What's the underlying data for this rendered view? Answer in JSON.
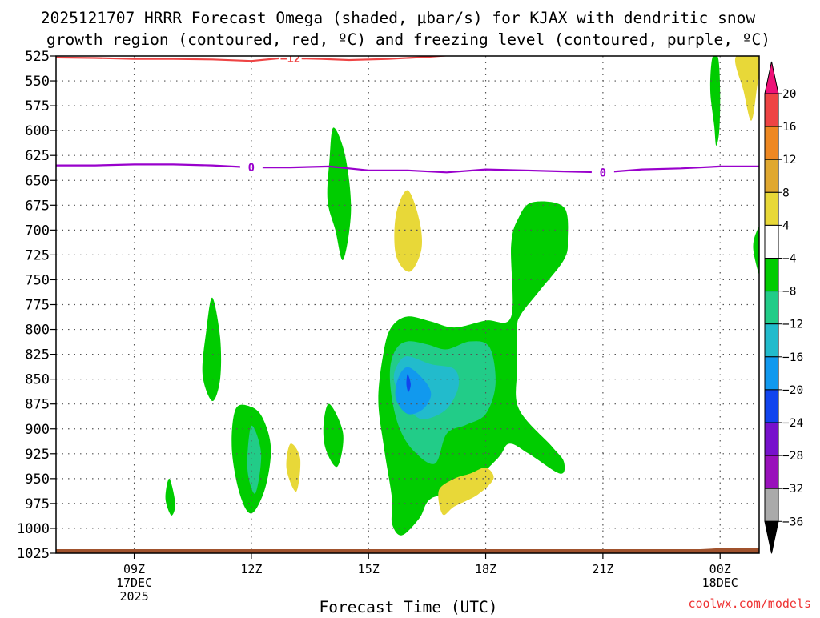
{
  "chart_data": {
    "type": "heatmap",
    "title_line1": "2025121707 HRRR Forecast Omega (shaded, µbar/s) for KJAX with dendritic snow",
    "title_line2": "growth region (contoured, red, ºC) and freezing level (contoured, purple, ºC)",
    "xlabel": "Forecast Time (UTC)",
    "ylabel": "",
    "credit": "coolwx.com/models",
    "x_range_hours": [
      7,
      25
    ],
    "y_range_mb": [
      525,
      1025
    ],
    "y_ticks": [
      525,
      550,
      575,
      600,
      625,
      650,
      675,
      700,
      725,
      750,
      775,
      800,
      825,
      850,
      875,
      900,
      925,
      950,
      975,
      1000,
      1025
    ],
    "x_ticks": [
      {
        "hour": 9,
        "label": "09Z",
        "sub1": "17DEC",
        "sub2": "2025"
      },
      {
        "hour": 12,
        "label": "12Z",
        "sub1": "",
        "sub2": ""
      },
      {
        "hour": 15,
        "label": "15Z",
        "sub1": "",
        "sub2": ""
      },
      {
        "hour": 18,
        "label": "18Z",
        "sub1": "",
        "sub2": ""
      },
      {
        "hour": 21,
        "label": "21Z",
        "sub1": "",
        "sub2": ""
      },
      {
        "hour": 24,
        "label": "00Z",
        "sub1": "18DEC",
        "sub2": ""
      }
    ],
    "colorbar": {
      "labels": [
        "20",
        "16",
        "12",
        "8",
        "4",
        "−4",
        "−8",
        "−12",
        "−16",
        "−20",
        "−24",
        "−28",
        "−32",
        "−36"
      ],
      "colors": [
        "#ee4444",
        "#ee8822",
        "#e0a830",
        "#e8d838",
        "#ffffff",
        "#00cc00",
        "#22cc88",
        "#22bbcc",
        "#1199ee",
        "#1144ee",
        "#7711cc",
        "#9911bb",
        "#aaaaaa"
      ],
      "top_arrow_color": "#ee1177",
      "bottom_arrow_color": "#000000"
    },
    "contours": [
      {
        "name": "dendritic -12C",
        "color": "#ee4444",
        "label": "−12",
        "points": [
          [
            7.0,
            526.5
          ],
          [
            8.0,
            527
          ],
          [
            9.0,
            528
          ],
          [
            10.0,
            528
          ],
          [
            11.0,
            528.5
          ],
          [
            12.0,
            530
          ],
          [
            12.8,
            527
          ],
          [
            13.8,
            528
          ],
          [
            14.5,
            529
          ],
          [
            15.5,
            528
          ],
          [
            16.5,
            526
          ],
          [
            17.5,
            523
          ],
          [
            18.0,
            521
          ]
        ]
      },
      {
        "name": "freezing level 0C",
        "color": "#9900cc",
        "label": "0",
        "points": [
          [
            7.0,
            635
          ],
          [
            8.0,
            635
          ],
          [
            9.0,
            634
          ],
          [
            10.0,
            634
          ],
          [
            11.0,
            635
          ],
          [
            12.0,
            637
          ],
          [
            13.0,
            637
          ],
          [
            14.0,
            636
          ],
          [
            15.0,
            640
          ],
          [
            16.0,
            640
          ],
          [
            17.0,
            642
          ],
          [
            18.0,
            639
          ],
          [
            19.0,
            640
          ],
          [
            20.0,
            641
          ],
          [
            21.0,
            642
          ],
          [
            22.0,
            639
          ],
          [
            23.0,
            638
          ],
          [
            24.0,
            636
          ],
          [
            25.0,
            636
          ]
        ]
      }
    ],
    "regions": [
      {
        "color": "#00cc00",
        "points": [
          [
            23.8,
            527
          ],
          [
            23.95,
            527
          ],
          [
            24.0,
            560
          ],
          [
            23.98,
            600
          ],
          [
            23.9,
            615
          ],
          [
            23.85,
            595
          ],
          [
            23.75,
            560
          ]
        ],
        "cls": "g1"
      },
      {
        "color": "#e8d838",
        "points": [
          [
            24.4,
            526
          ],
          [
            25.05,
            526
          ],
          [
            24.95,
            555
          ],
          [
            24.8,
            590
          ],
          [
            24.6,
            560
          ]
        ],
        "cls": "y1"
      },
      {
        "color": "#00cc00",
        "points": [
          [
            14.1,
            597
          ],
          [
            14.4,
            625
          ],
          [
            14.55,
            680
          ],
          [
            14.35,
            730
          ],
          [
            14.15,
            700
          ],
          [
            13.95,
            670
          ],
          [
            14.0,
            630
          ]
        ],
        "cls": "g2"
      },
      {
        "color": "#e8d838",
        "points": [
          [
            16.0,
            660
          ],
          [
            16.3,
            690
          ],
          [
            16.35,
            720
          ],
          [
            16.05,
            742
          ],
          [
            15.7,
            725
          ],
          [
            15.7,
            685
          ]
        ],
        "cls": "y2"
      },
      {
        "color": "#00cc00",
        "points": [
          [
            11.0,
            768
          ],
          [
            11.2,
            808
          ],
          [
            11.2,
            850
          ],
          [
            11.0,
            872
          ],
          [
            10.75,
            845
          ],
          [
            10.85,
            800
          ]
        ],
        "cls": "g3"
      },
      {
        "color": "#00cc00",
        "points": [
          [
            9.9,
            950
          ],
          [
            10.05,
            975
          ],
          [
            9.95,
            987
          ],
          [
            9.8,
            970
          ]
        ],
        "cls": "g4"
      },
      {
        "color": "#00cc00",
        "points": [
          [
            11.6,
            880
          ],
          [
            12.0,
            878
          ],
          [
            12.3,
            890
          ],
          [
            12.5,
            920
          ],
          [
            12.35,
            960
          ],
          [
            12.0,
            985
          ],
          [
            11.7,
            965
          ],
          [
            11.5,
            920
          ]
        ],
        "cls": "g5"
      },
      {
        "color": "#22cc88",
        "points": [
          [
            12.0,
            897
          ],
          [
            12.25,
            925
          ],
          [
            12.1,
            965
          ],
          [
            11.9,
            940
          ]
        ],
        "cls": "t1"
      },
      {
        "color": "#e8d838",
        "points": [
          [
            13.0,
            915
          ],
          [
            13.25,
            930
          ],
          [
            13.15,
            963
          ],
          [
            12.9,
            940
          ]
        ],
        "cls": "y3"
      },
      {
        "color": "#00cc00",
        "points": [
          [
            14.0,
            875
          ],
          [
            14.35,
            905
          ],
          [
            14.2,
            938
          ],
          [
            13.9,
            920
          ],
          [
            13.85,
            895
          ]
        ],
        "cls": "g6"
      },
      {
        "color": "#00cc00",
        "points": [
          [
            19.2,
            672
          ],
          [
            20.0,
            677
          ],
          [
            20.1,
            710
          ],
          [
            20.0,
            730
          ],
          [
            19.4,
            760
          ],
          [
            18.9,
            785
          ],
          [
            18.8,
            800
          ],
          [
            18.8,
            840
          ],
          [
            18.85,
            880
          ],
          [
            19.7,
            918
          ],
          [
            20.0,
            933
          ],
          [
            19.9,
            945
          ],
          [
            19.1,
            925
          ],
          [
            18.6,
            915
          ],
          [
            18.3,
            930
          ],
          [
            17.4,
            962
          ],
          [
            16.6,
            970
          ],
          [
            16.3,
            990
          ],
          [
            15.85,
            1007
          ],
          [
            15.6,
            995
          ],
          [
            15.6,
            970
          ],
          [
            15.4,
            920
          ],
          [
            15.25,
            870
          ],
          [
            15.4,
            820
          ],
          [
            15.6,
            797
          ],
          [
            16.0,
            787
          ],
          [
            16.6,
            792
          ],
          [
            17.2,
            798
          ],
          [
            18.0,
            791
          ],
          [
            18.65,
            787
          ],
          [
            18.65,
            715
          ],
          [
            18.85,
            687
          ]
        ],
        "cls": "g7"
      },
      {
        "color": "#22cc88",
        "points": [
          [
            16.0,
            812
          ],
          [
            16.5,
            815
          ],
          [
            17.0,
            820
          ],
          [
            17.6,
            812
          ],
          [
            18.1,
            818
          ],
          [
            18.25,
            855
          ],
          [
            18.0,
            885
          ],
          [
            17.5,
            896
          ],
          [
            17.0,
            905
          ],
          [
            16.7,
            935
          ],
          [
            16.15,
            922
          ],
          [
            15.8,
            900
          ],
          [
            15.6,
            870
          ],
          [
            15.55,
            840
          ],
          [
            15.7,
            820
          ]
        ],
        "cls": "t2"
      },
      {
        "color": "#22bbcc",
        "points": [
          [
            16.0,
            827
          ],
          [
            16.6,
            835
          ],
          [
            17.2,
            840
          ],
          [
            17.3,
            858
          ],
          [
            17.0,
            880
          ],
          [
            16.5,
            890
          ],
          [
            16.2,
            887
          ],
          [
            15.85,
            870
          ],
          [
            15.65,
            850
          ],
          [
            15.75,
            835
          ]
        ],
        "cls": "c1"
      },
      {
        "color": "#1199ee",
        "points": [
          [
            16.0,
            838
          ],
          [
            16.4,
            850
          ],
          [
            16.6,
            865
          ],
          [
            16.4,
            880
          ],
          [
            16.0,
            885
          ],
          [
            15.7,
            870
          ],
          [
            15.75,
            850
          ]
        ],
        "cls": "b1"
      },
      {
        "color": "#1144ee",
        "points": [
          [
            16.0,
            845
          ],
          [
            16.08,
            855
          ],
          [
            16.02,
            863
          ],
          [
            15.97,
            855
          ]
        ],
        "cls": "b2"
      },
      {
        "color": "#e8d838",
        "points": [
          [
            17.6,
            945
          ],
          [
            18.0,
            939
          ],
          [
            18.2,
            950
          ],
          [
            17.8,
            966
          ],
          [
            17.2,
            978
          ],
          [
            16.9,
            986
          ],
          [
            16.8,
            962
          ],
          [
            17.2,
            950
          ]
        ],
        "cls": "y4"
      },
      {
        "color": "#00cc00",
        "points": [
          [
            25.1,
            695
          ],
          [
            25.3,
            700
          ],
          [
            25.3,
            745
          ],
          [
            25.1,
            755
          ],
          [
            24.85,
            720
          ],
          [
            24.95,
            700
          ]
        ],
        "cls": "g8"
      }
    ]
  }
}
